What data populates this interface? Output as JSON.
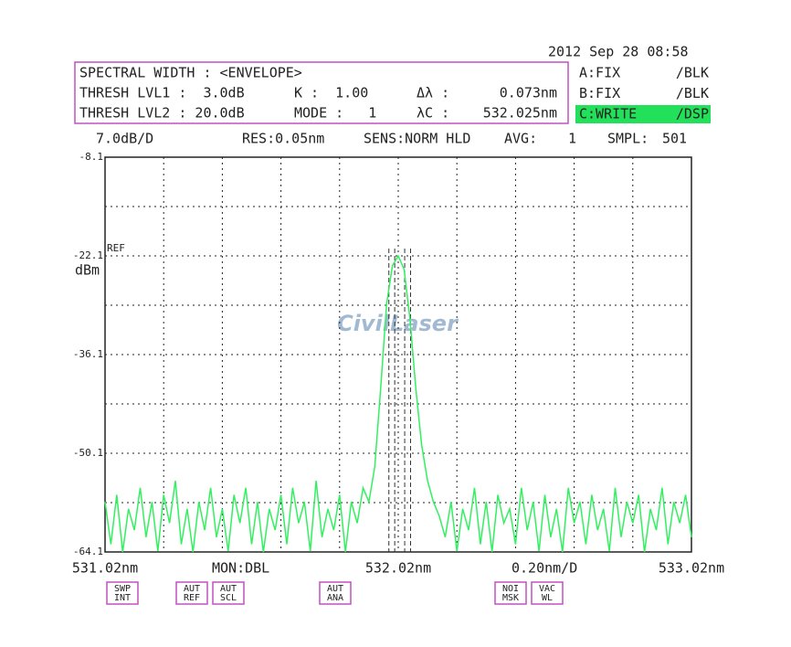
{
  "chart_data": {
    "type": "line",
    "timestamp": "2012 Sep 28 08:58",
    "info": [
      [
        "SPECTRAL WIDTH : <ENVELOPE>"
      ],
      [
        "THRESH LVL1 :  3.0dB",
        "K :  1.00",
        "Δλ :",
        "0.073nm"
      ],
      [
        "THRESH LVL2 : 20.0dB",
        "MODE :   1",
        "λC :",
        "532.025nm"
      ]
    ],
    "traces": [
      {
        "name": "A:FIX",
        "state": "/BLK",
        "color": "#2233dd"
      },
      {
        "name": "B:FIX",
        "state": "/BLK",
        "color": "#e02020"
      },
      {
        "name": "C:WRITE",
        "state": "/DSP",
        "color": "#22e05a"
      }
    ],
    "status": [
      "7.0dB/D",
      "RES:0.05nm",
      "SENS:NORM HLD",
      "AVG:",
      "1",
      "SMPL:",
      "501"
    ],
    "ref_label": "REF",
    "y_unit": "dBm",
    "watermark": "CivilLaser",
    "monitor": "MON:DBL",
    "x_scale": "0.20nm/D",
    "xlim": [
      531.02,
      533.02
    ],
    "ylim": [
      -64.1,
      -8.1
    ],
    "xticks": [
      {
        "value": 531.02,
        "label": "531.02nm"
      },
      {
        "value": 532.02,
        "label": "532.02nm"
      },
      {
        "value": 533.02,
        "label": "533.02nm"
      }
    ],
    "yticks": [
      -8.1,
      -22.1,
      -36.1,
      -50.1,
      -64.1
    ],
    "grid": true,
    "color": "#33f060",
    "markers_x": [
      531.988,
      532.008,
      532.042,
      532.062
    ],
    "x": [
      531.02,
      531.04,
      531.06,
      531.08,
      531.1,
      531.12,
      531.14,
      531.16,
      531.18,
      531.2,
      531.22,
      531.24,
      531.26,
      531.28,
      531.3,
      531.32,
      531.34,
      531.36,
      531.38,
      531.4,
      531.42,
      531.44,
      531.46,
      531.48,
      531.5,
      531.52,
      531.54,
      531.56,
      531.58,
      531.6,
      531.62,
      531.64,
      531.66,
      531.68,
      531.7,
      531.72,
      531.74,
      531.76,
      531.78,
      531.8,
      531.82,
      531.84,
      531.86,
      531.88,
      531.9,
      531.92,
      531.94,
      531.96,
      531.98,
      532.0,
      532.02,
      532.04,
      532.06,
      532.08,
      532.1,
      532.12,
      532.14,
      532.16,
      532.18,
      532.2,
      532.22,
      532.24,
      532.26,
      532.28,
      532.3,
      532.32,
      532.34,
      532.36,
      532.38,
      532.4,
      532.42,
      532.44,
      532.46,
      532.48,
      532.5,
      532.52,
      532.54,
      532.56,
      532.58,
      532.6,
      532.62,
      532.64,
      532.66,
      532.68,
      532.7,
      532.72,
      532.74,
      532.76,
      532.78,
      532.8,
      532.82,
      532.84,
      532.86,
      532.88,
      532.9,
      532.92,
      532.94,
      532.96,
      532.98,
      533.0,
      533.02
    ],
    "values": [
      -57,
      -63,
      -56,
      -64.1,
      -58,
      -61,
      -55,
      -62,
      -57,
      -64,
      -56,
      -60,
      -54,
      -63,
      -58,
      -64.1,
      -57,
      -61,
      -55,
      -62,
      -58,
      -64,
      -56,
      -60,
      -55,
      -63,
      -57,
      -64.1,
      -58,
      -61,
      -56,
      -63,
      -55,
      -60,
      -57,
      -64,
      -54,
      -62,
      -58,
      -61,
      -56,
      -64.1,
      -57,
      -60,
      -55,
      -57,
      -52,
      -41,
      -29,
      -23.5,
      -22.1,
      -24,
      -31,
      -41,
      -49,
      -54,
      -57,
      -59,
      -62,
      -57,
      -64,
      -58,
      -61,
      -55,
      -63,
      -57,
      -64.1,
      -56,
      -60,
      -58,
      -63,
      -55,
      -61,
      -57,
      -64,
      -56,
      -62,
      -58,
      -64.1,
      -55,
      -60,
      -57,
      -63,
      -56,
      -61,
      -58,
      -64,
      -55,
      -62,
      -57,
      -60,
      -56,
      -64.1,
      -58,
      -61,
      -55,
      -63,
      -57,
      -60,
      -56,
      -62
    ],
    "softkeys": [
      [
        "SWP",
        "INT"
      ],
      [
        "AUT",
        "REF"
      ],
      [
        "AUT",
        "SCL"
      ],
      [
        "AUT",
        "ANA"
      ],
      [
        "NOI",
        "MSK"
      ],
      [
        "VAC",
        "WL"
      ]
    ]
  }
}
